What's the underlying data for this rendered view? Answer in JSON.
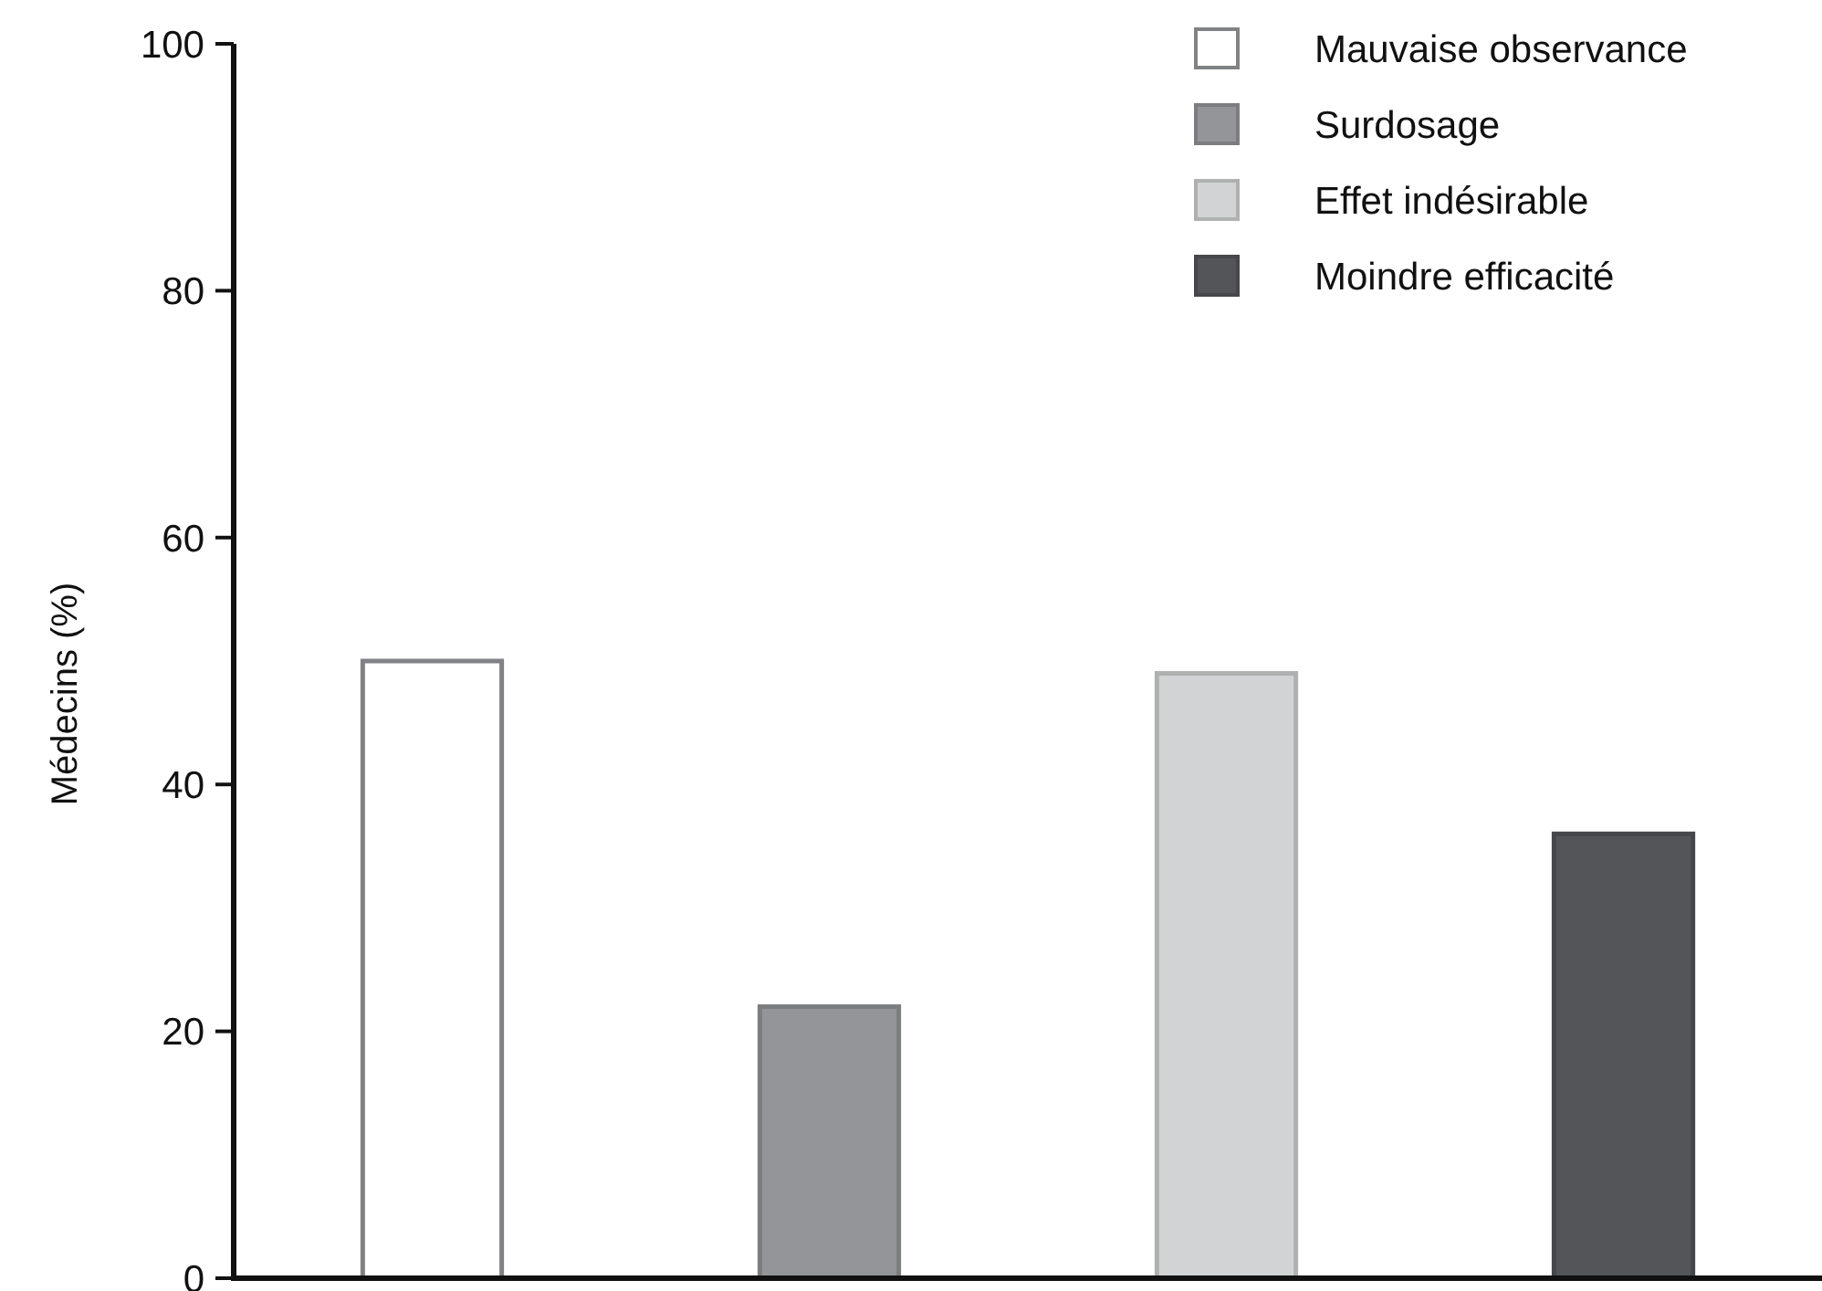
{
  "chart_data": {
    "type": "bar",
    "ylabel": "Médecins (%)",
    "categories": [
      null,
      null,
      null,
      null
    ],
    "series": [
      {
        "name": "Mauvaise observance",
        "color": "#ffffff",
        "values": [
          50,
          null,
          null,
          null
        ]
      },
      {
        "name": "Surdosage",
        "color": "#939598",
        "values": [
          null,
          22,
          null,
          null
        ]
      },
      {
        "name": "Effet indésirable",
        "color": "#d1d3d4",
        "values": [
          null,
          null,
          49,
          null
        ]
      },
      {
        "name": "Moindre efficacité",
        "color": "#545558",
        "values": [
          null,
          null,
          null,
          36
        ]
      }
    ],
    "ylim": [
      0,
      100
    ],
    "yticks": [
      0,
      20,
      40,
      60,
      80,
      100
    ],
    "grid": false,
    "legend": "top right"
  }
}
